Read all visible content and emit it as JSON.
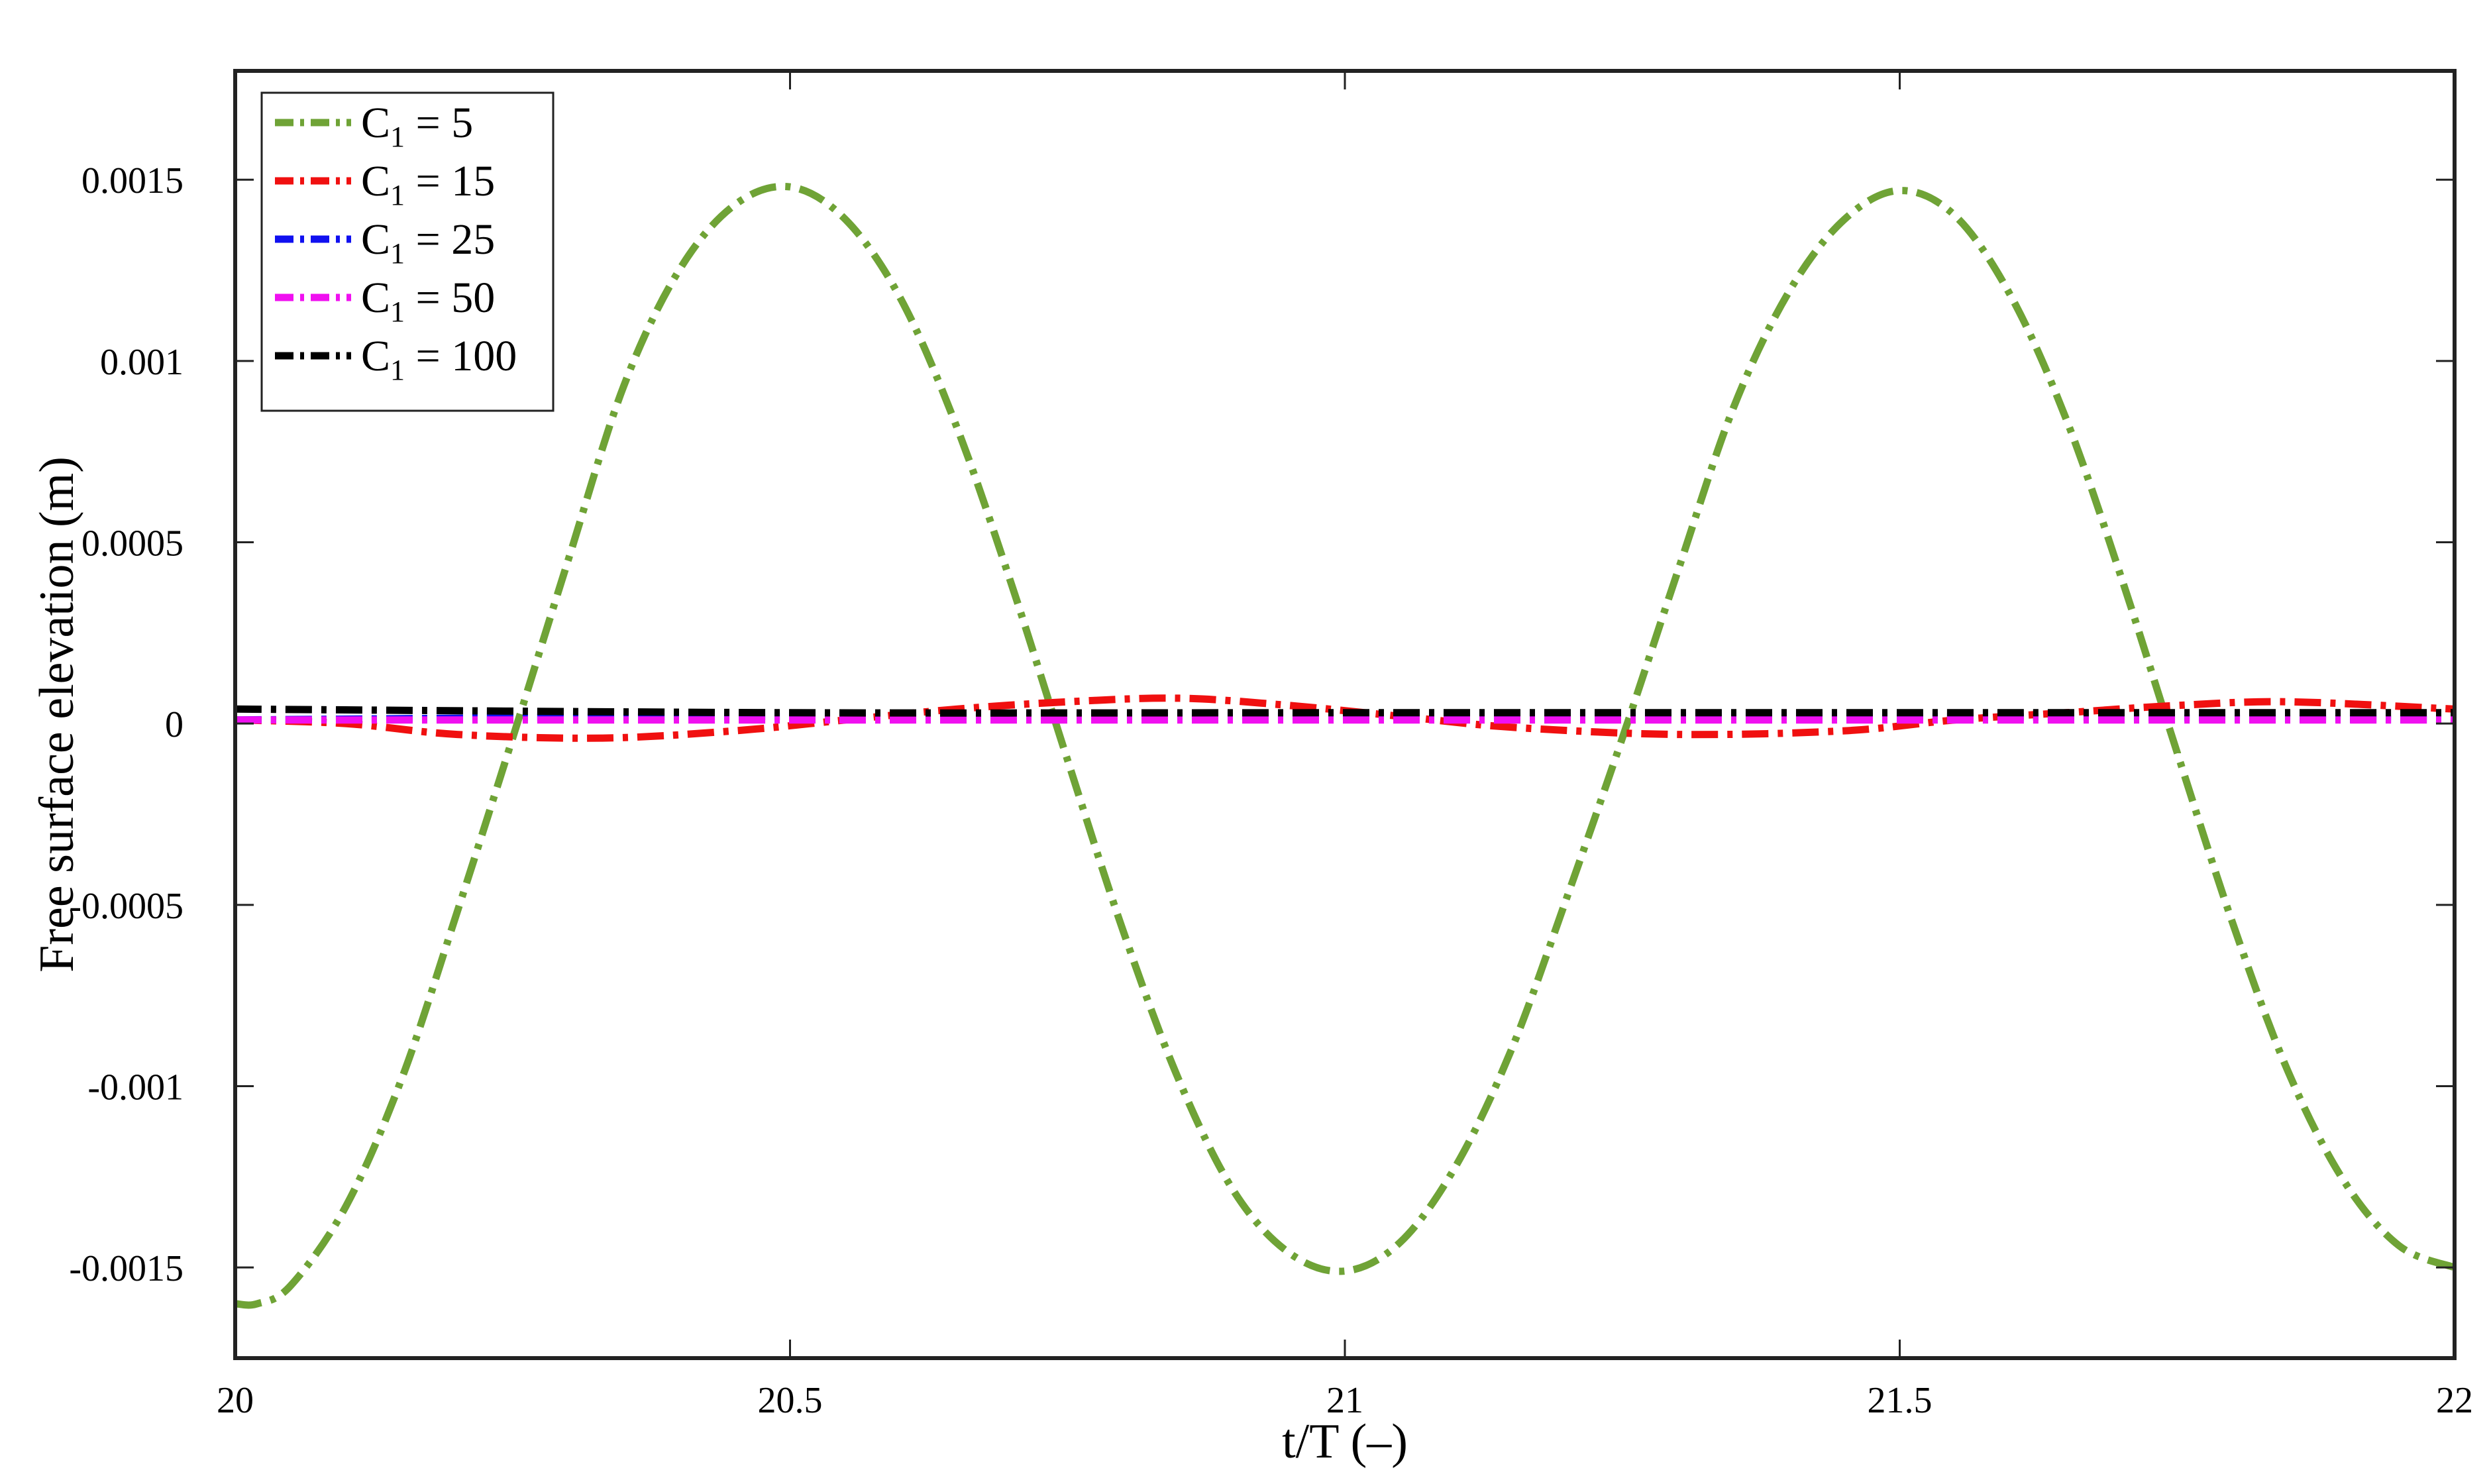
{
  "chart_data": {
    "type": "line",
    "xlabel": "t/T (–)",
    "ylabel": "Free surface elevation (m)",
    "xlim": [
      20,
      22
    ],
    "ylim": [
      -0.00175,
      0.0018
    ],
    "x_ticks": [
      20,
      20.5,
      21,
      21.5,
      22
    ],
    "x_tick_labels": [
      "20",
      "20.5",
      "21",
      "21.5",
      "22"
    ],
    "y_ticks": [
      -0.0015,
      -0.001,
      -0.0005,
      0,
      0.0005,
      0.001,
      0.0015
    ],
    "y_tick_labels": [
      "-0.0015",
      "-0.001",
      "-0.0005",
      "0",
      "0.0005",
      "0.001",
      "0.0015"
    ],
    "grid": false,
    "legend_position": "top-left",
    "line_style": "dash-dot",
    "series": [
      {
        "name": "C1 = 5",
        "legend_value": "5",
        "color": "#6fa336",
        "x": [
          20,
          20.02,
          20.05,
          20.1,
          20.15,
          20.2,
          20.25,
          20.3,
          20.35,
          20.4,
          20.45,
          20.5,
          20.55,
          20.6,
          20.65,
          20.7,
          20.75,
          20.8,
          20.85,
          20.9,
          20.95,
          21,
          21.05,
          21.1,
          21.15,
          21.2,
          21.25,
          21.3,
          21.35,
          21.4,
          21.45,
          21.5,
          21.55,
          21.6,
          21.65,
          21.7,
          21.75,
          21.8,
          21.85,
          21.9,
          21.95,
          22
        ],
        "y": [
          -0.0016,
          -0.0016,
          -0.00155,
          -0.00133,
          -0.00098,
          -0.00052,
          -4e-05,
          0.00045,
          0.00093,
          0.00125,
          0.00143,
          0.00148,
          0.00139,
          0.00117,
          0.00082,
          0.00038,
          -0.0001,
          -0.00057,
          -0.00098,
          -0.00129,
          -0.00146,
          -0.00151,
          -0.00143,
          -0.00122,
          -0.0009,
          -0.00048,
          -4e-05,
          0.00042,
          0.00087,
          0.00119,
          0.00139,
          0.00147,
          0.0014,
          0.00118,
          0.00084,
          0.0004,
          -8e-05,
          -0.00055,
          -0.00096,
          -0.00126,
          -0.00144,
          -0.0015
        ]
      },
      {
        "name": "C1 = 15",
        "legend_value": "15",
        "color": "#f01010",
        "x": [
          20,
          20.1,
          20.2,
          20.33,
          20.45,
          20.55,
          20.65,
          20.75,
          20.85,
          20.95,
          21.05,
          21.15,
          21.3,
          21.45,
          21.55,
          21.65,
          21.75,
          21.85,
          22
        ],
        "y": [
          1e-05,
          0.0,
          -3e-05,
          -4e-05,
          -2e-05,
          1e-05,
          4e-05,
          6e-05,
          7e-05,
          5e-05,
          2e-05,
          -1e-05,
          -3e-05,
          -2e-05,
          1e-05,
          3e-05,
          5e-05,
          6e-05,
          4e-05
        ]
      },
      {
        "name": "C1 = 25",
        "legend_value": "25",
        "color": "#1010f0",
        "x": [
          20,
          20.5,
          21,
          21.5,
          22
        ],
        "y": [
          1e-05,
          2e-05,
          2e-05,
          2e-05,
          1e-05
        ]
      },
      {
        "name": "C1 = 50",
        "legend_value": "50",
        "color": "#f010f0",
        "x": [
          20,
          20.5,
          21,
          21.5,
          22
        ],
        "y": [
          1e-05,
          1e-05,
          1e-05,
          1e-05,
          1e-05
        ]
      },
      {
        "name": "C1 = 100",
        "legend_value": "100",
        "color": "#000000",
        "x": [
          20,
          20.5,
          21,
          21.5,
          22
        ],
        "y": [
          4e-05,
          3e-05,
          3e-05,
          3e-05,
          3e-05
        ]
      }
    ]
  }
}
